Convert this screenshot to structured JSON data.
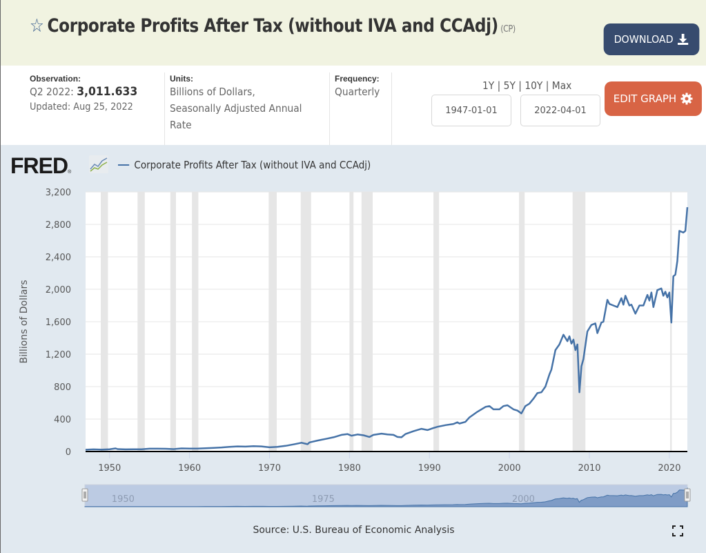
{
  "header": {
    "title": "Corporate Profits After Tax (without IVA and CCAdj)",
    "series_code": "(CP)",
    "star_icon": "star-outline-icon",
    "download_label": "DOWNLOAD",
    "download_icon": "download-icon"
  },
  "meta": {
    "observation_label": "Observation:",
    "observation_period": "Q2 2022:",
    "observation_value": "3,011.633",
    "updated": "Updated: Aug 25, 2022",
    "units_label": "Units:",
    "units_line1": "Billions of Dollars,",
    "units_line2": "Seasonally Adjusted Annual",
    "units_line3": "Rate",
    "frequency_label": "Frequency:",
    "frequency_value": "Quarterly"
  },
  "controls": {
    "range_1y": "1Y",
    "range_5y": "5Y",
    "range_10y": "10Y",
    "range_max": "Max",
    "sep": "|",
    "start_date": "1947-01-01",
    "end_date": "2022-04-01",
    "edit_graph_label": "EDIT GRAPH",
    "edit_graph_icon": "gear-icon"
  },
  "chart_header": {
    "logo": "FRED",
    "logo_mark": "®",
    "legend_label": "Corporate Profits After Tax (without IVA and CCAdj)"
  },
  "footer": {
    "source": "Source: U.S. Bureau of Economic Analysis",
    "fullscreen_icon": "fullscreen-icon"
  },
  "colors": {
    "series": "#4572a7",
    "recession": "#e6e6e6",
    "download_btn": "#374b6e",
    "edit_btn": "#d86445",
    "header_bg": "#f1f3e1",
    "chart_bg": "#e1e9f0"
  },
  "chart_data": {
    "type": "line",
    "title": "Corporate Profits After Tax (without IVA and CCAdj)",
    "xlabel": "",
    "ylabel": "Billions of Dollars",
    "xlim": [
      1947.0,
      2022.25
    ],
    "ylim": [
      0,
      3200
    ],
    "yticks": [
      0,
      400,
      800,
      1200,
      1600,
      2000,
      2400,
      2800,
      3200
    ],
    "ytick_labels": [
      "0",
      "400",
      "800",
      "1,200",
      "1,600",
      "2,000",
      "2,400",
      "2,800",
      "3,200"
    ],
    "xticks": [
      1950,
      1960,
      1970,
      1980,
      1990,
      2000,
      2010,
      2020
    ],
    "xtick_labels": [
      "1950",
      "1960",
      "1970",
      "1980",
      "1990",
      "2000",
      "2010",
      "2020"
    ],
    "grid": true,
    "legend": "top-left",
    "recessions": [
      [
        1948.9,
        1949.8
      ],
      [
        1953.5,
        1954.4
      ],
      [
        1957.6,
        1958.3
      ],
      [
        1960.3,
        1961.1
      ],
      [
        1969.9,
        1970.9
      ],
      [
        1973.9,
        1975.2
      ],
      [
        1980.0,
        1980.5
      ],
      [
        1981.5,
        1982.9
      ],
      [
        1990.5,
        1991.2
      ],
      [
        2001.2,
        2001.9
      ],
      [
        2007.9,
        2009.5
      ],
      [
        2020.1,
        2020.3
      ]
    ],
    "series": [
      {
        "name": "Corporate Profits After Tax (without IVA and CCAdj)",
        "x": [
          1947.0,
          1948.0,
          1949.0,
          1950.0,
          1950.75,
          1951.0,
          1952.0,
          1953.0,
          1954.0,
          1955.0,
          1956.0,
          1957.0,
          1958.0,
          1959.0,
          1960.0,
          1961.0,
          1962.0,
          1963.0,
          1964.0,
          1965.0,
          1966.0,
          1967.0,
          1968.0,
          1969.0,
          1970.0,
          1971.0,
          1972.0,
          1973.0,
          1974.0,
          1974.75,
          1975.0,
          1976.0,
          1977.0,
          1978.0,
          1979.0,
          1979.75,
          1980.25,
          1981.0,
          1981.75,
          1982.5,
          1983.0,
          1984.0,
          1984.75,
          1985.5,
          1986.0,
          1986.5,
          1987.0,
          1988.0,
          1989.0,
          1989.75,
          1990.5,
          1991.0,
          1992.0,
          1993.0,
          1993.5,
          1993.75,
          1994.5,
          1995.0,
          1996.0,
          1997.0,
          1997.5,
          1998.0,
          1998.75,
          1999.25,
          1999.75,
          2000.5,
          2001.0,
          2001.5,
          2002.0,
          2002.5,
          2003.0,
          2003.5,
          2004.0,
          2004.5,
          2005.0,
          2005.25,
          2005.75,
          2006.25,
          2006.75,
          2007.25,
          2007.5,
          2007.75,
          2008.0,
          2008.25,
          2008.5,
          2008.75,
          2009.0,
          2009.25,
          2009.75,
          2010.25,
          2010.75,
          2011.0,
          2011.5,
          2011.75,
          2012.25,
          2012.5,
          2013.0,
          2013.5,
          2014.0,
          2014.25,
          2014.5,
          2015.0,
          2015.25,
          2015.75,
          2016.25,
          2016.75,
          2017.25,
          2017.5,
          2017.75,
          2018.0,
          2018.5,
          2019.0,
          2019.25,
          2019.5,
          2019.75,
          2020.0,
          2020.25,
          2020.5,
          2020.75,
          2021.0,
          2021.25,
          2021.5,
          2021.75,
          2022.0,
          2022.25
        ],
        "values": [
          22,
          26,
          24,
          28,
          38,
          30,
          26,
          28,
          27,
          35,
          35,
          34,
          30,
          38,
          36,
          36,
          41,
          45,
          50,
          58,
          63,
          60,
          66,
          63,
          52,
          58,
          70,
          88,
          108,
          90,
          112,
          135,
          155,
          175,
          205,
          215,
          195,
          210,
          200,
          180,
          205,
          220,
          210,
          205,
          180,
          175,
          215,
          250,
          280,
          265,
          290,
          305,
          325,
          340,
          360,
          345,
          365,
          420,
          490,
          550,
          560,
          520,
          520,
          560,
          570,
          520,
          505,
          470,
          560,
          590,
          650,
          720,
          730,
          800,
          950,
          1010,
          1250,
          1320,
          1440,
          1360,
          1420,
          1330,
          1380,
          1250,
          1320,
          730,
          1050,
          1140,
          1480,
          1560,
          1580,
          1460,
          1590,
          1600,
          1870,
          1820,
          1800,
          1780,
          1890,
          1810,
          1920,
          1800,
          1810,
          1700,
          1800,
          1800,
          1930,
          1860,
          1960,
          1780,
          1990,
          2010,
          1920,
          1970,
          1900,
          1960,
          1590,
          2160,
          2180,
          2350,
          2720,
          2710,
          2700,
          2720,
          3011.633
        ]
      }
    ],
    "navigator": {
      "labels": [
        "1950",
        "1975",
        "2000"
      ],
      "range": [
        1947.0,
        2022.25
      ]
    },
    "source": "Source: U.S. Bureau of Economic Analysis"
  }
}
